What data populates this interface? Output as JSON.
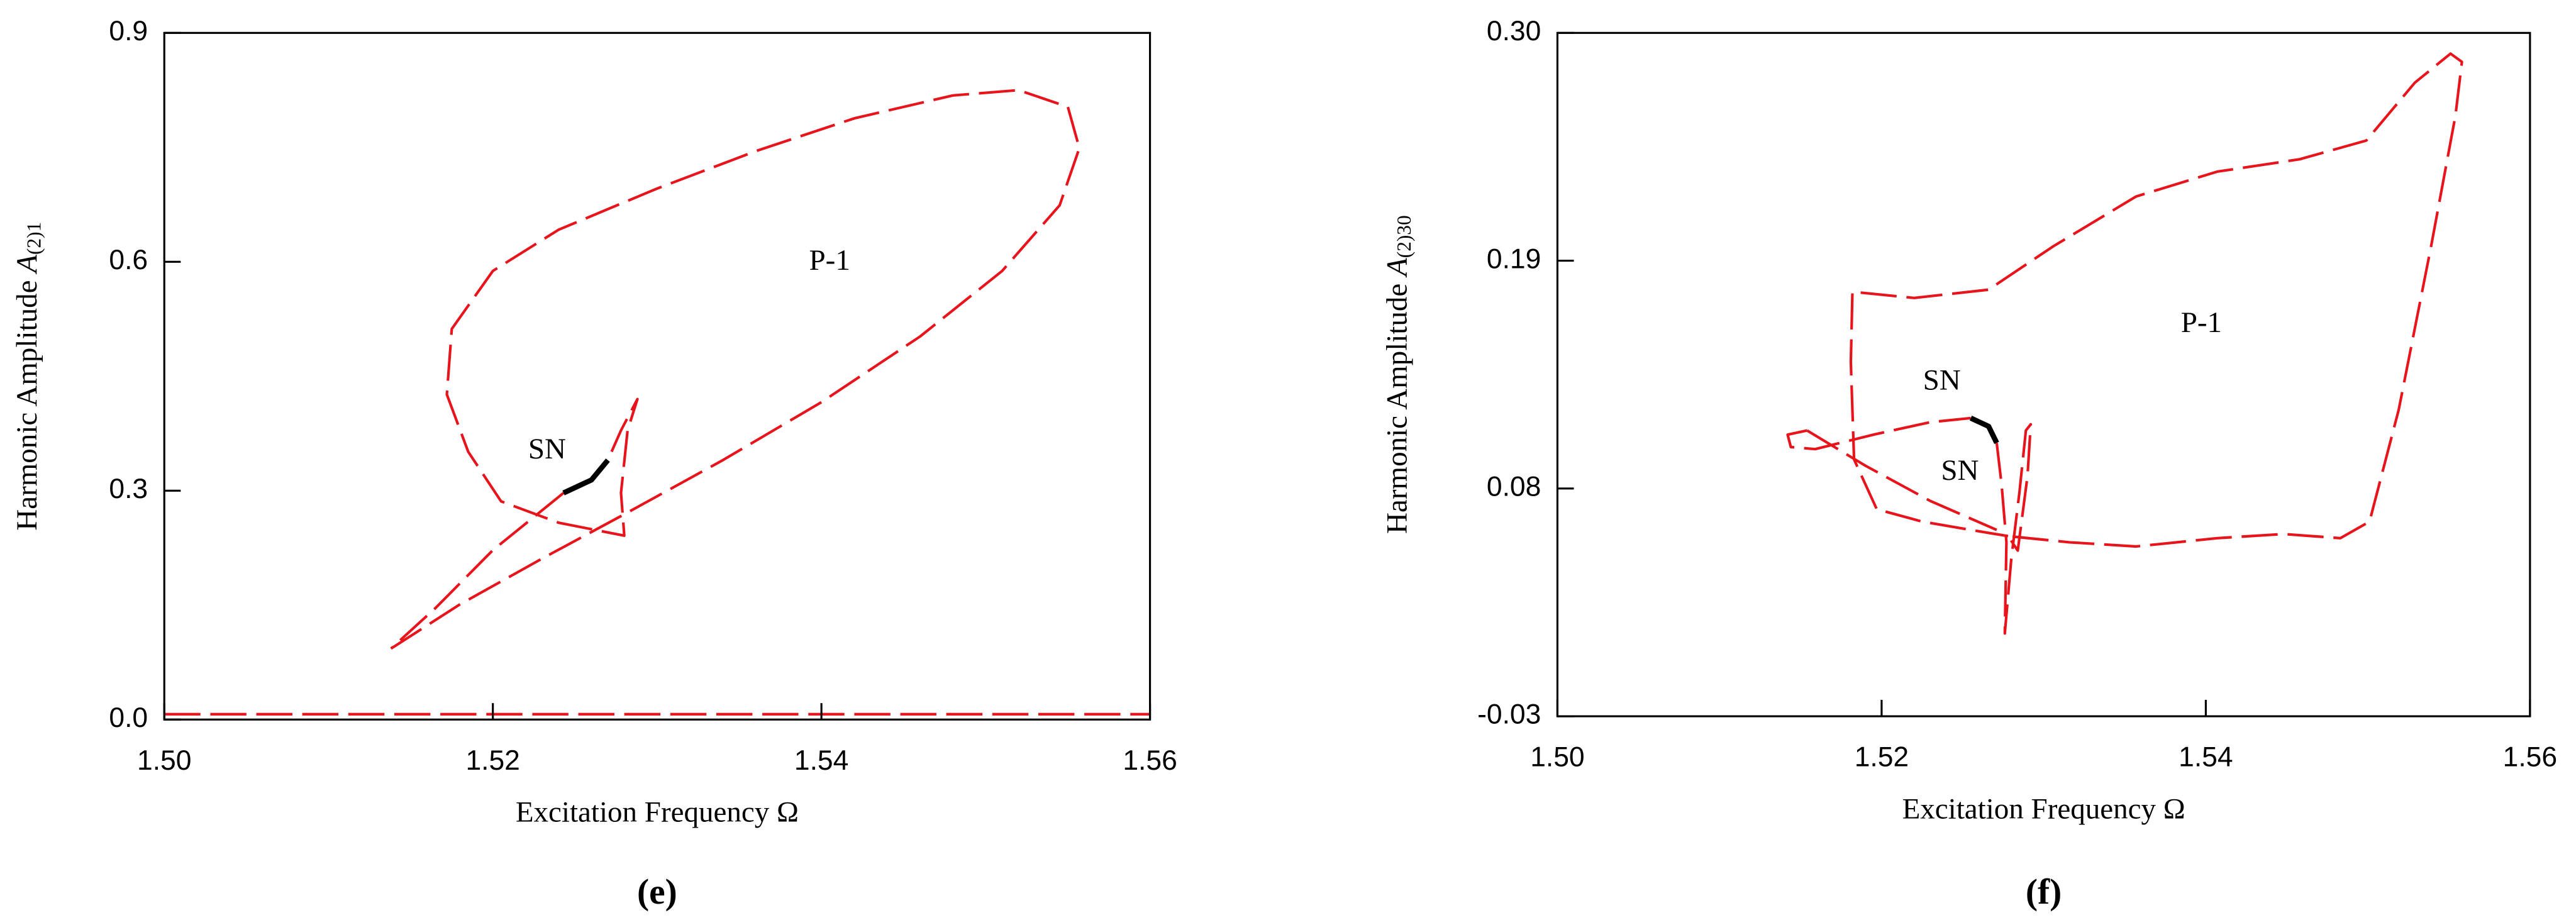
{
  "chart_data": [
    {
      "type": "line",
      "panel": "(e)",
      "xlabel": "Excitation Frequency  Ω",
      "ylabel": "Harmonic Amplitude ",
      "ylabel_symbol": "A",
      "ylabel_subscript": "(2)1",
      "xlim": [
        1.5,
        1.56
      ],
      "xticks": [
        {
          "value": 1.5,
          "label": "1.50"
        },
        1.52,
        1.54,
        {
          "value": 1.56,
          "label": "1.56"
        }
      ],
      "ylim": [
        0,
        0.9
      ],
      "yticks": [
        {
          "value": 0,
          "label": "0.0"
        },
        0.3,
        0.6,
        0.9
      ],
      "annotations": [
        "P-1",
        "SN"
      ],
      "series": [
        {
          "color": "#e8141c",
          "dashed": true,
          "x": [
            1.5138,
            1.518,
            1.523,
            1.528,
            1.534,
            1.54,
            1.546,
            1.551,
            1.5545,
            1.5557,
            1.555,
            1.552,
            1.548,
            1.542,
            1.536,
            1.53,
            1.524,
            1.52,
            1.5175,
            1.5172,
            1.5185,
            1.5205,
            1.524,
            1.528,
            1.5278,
            1.5282,
            1.5288,
            1.5278,
            1.527,
            null,
            1.5243,
            1.52,
            1.5165,
            1.5138
          ],
          "values": [
            0.093,
            0.151,
            0.211,
            0.269,
            0.34,
            0.416,
            0.502,
            0.588,
            0.674,
            0.749,
            0.803,
            0.825,
            0.818,
            0.788,
            0.745,
            0.696,
            0.642,
            0.588,
            0.512,
            0.426,
            0.351,
            0.286,
            0.258,
            0.241,
            0.297,
            0.379,
            0.42,
            0.379,
            0.34,
            null,
            0.297,
            0.222,
            0.146,
            0.093
          ]
        },
        {
          "color": "#000000",
          "dashed": false,
          "x": [
            1.527,
            1.526,
            1.5243
          ],
          "values": [
            0.34,
            0.314,
            0.297
          ]
        },
        {
          "color": "#e8141c",
          "dashed": true,
          "x": [
            1.5,
            1.56
          ],
          "values": [
            0.007,
            0.007
          ]
        }
      ]
    },
    {
      "type": "line",
      "panel": "(f)",
      "xlabel": "Excitation Frequency  Ω",
      "ylabel": "Harmonic Amplitude ",
      "ylabel_symbol": "A",
      "ylabel_subscript": "(2)30",
      "xlim": [
        1.5,
        1.56
      ],
      "xticks": [
        {
          "value": 1.5,
          "label": "1.50"
        },
        1.52,
        1.54,
        {
          "value": 1.56,
          "label": "1.56"
        }
      ],
      "ylim": [
        -0.03,
        0.3
      ],
      "yticks": [
        -0.03,
        {
          "value": 0.08,
          "label": "0.08"
        },
        0.19,
        {
          "value": 0.3,
          "label": "0.30"
        }
      ],
      "annotations": [
        "P-1",
        "SN",
        "SN"
      ],
      "series": [
        {
          "color": "#e8141c",
          "dashed": true,
          "x": [
            1.5154,
            1.5142,
            1.5144,
            1.5159,
            1.5195,
            1.523,
            1.5255,
            null,
            1.5271,
            1.5274,
            1.5277,
            1.5276,
            1.528,
            1.5285,
            1.5289,
            1.5292,
            1.529,
            1.5284,
            1.5278,
            1.5316,
            1.5357,
            1.5407,
            1.5448,
            1.5483,
            1.5501,
            1.5519,
            1.5539,
            1.5554,
            1.5558,
            1.5551,
            1.5529,
            1.5499,
            1.5458,
            1.5407,
            1.5357,
            1.5306,
            1.5266,
            1.522,
            1.5182,
            1.5181,
            1.5183,
            1.5197,
            1.5225,
            1.5255,
            1.5278,
            null,
            1.5154,
            1.519,
            1.523,
            1.5271
          ],
          "values": [
            0.108,
            0.106,
            0.1,
            0.099,
            0.106,
            0.112,
            0.114,
            null,
            0.102,
            0.082,
            0.054,
            0.01,
            0.046,
            0.078,
            0.108,
            0.111,
            0.086,
            0.05,
            0.057,
            0.054,
            0.052,
            0.056,
            0.058,
            0.056,
            0.064,
            0.118,
            0.197,
            0.26,
            0.286,
            0.29,
            0.276,
            0.248,
            0.239,
            0.233,
            0.221,
            0.197,
            0.176,
            0.172,
            0.175,
            0.141,
            0.094,
            0.07,
            0.064,
            0.06,
            0.057,
            null,
            0.108,
            0.091,
            0.074,
            0.06
          ]
        },
        {
          "color": "#000000",
          "dashed": false,
          "x": [
            1.5255,
            1.5266,
            1.5271
          ],
          "values": [
            0.114,
            0.11,
            0.102
          ]
        }
      ]
    }
  ]
}
